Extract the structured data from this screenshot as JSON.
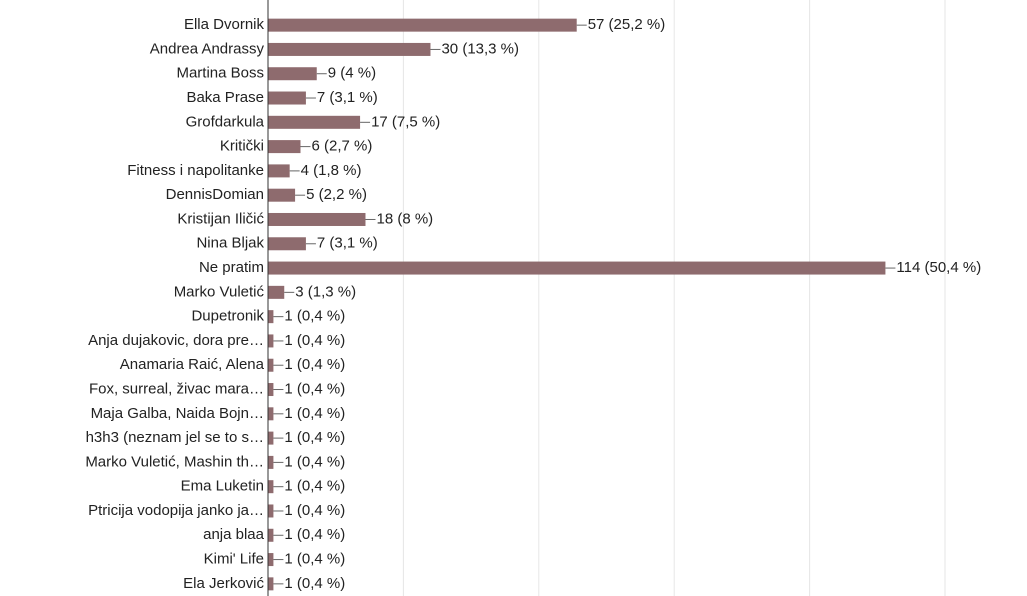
{
  "chart_data": {
    "type": "barh",
    "categories": [
      "Ella Dvornik",
      "Andrea Andrassy",
      "Martina Boss",
      "Baka Prase",
      "Grofdarkula",
      "Kritički",
      "Fitness i napolitanke",
      "DennisDomian",
      "Kristijan Iličić",
      "Nina Bljak",
      "Ne pratim",
      "Marko Vuletić",
      "Dupetronik",
      "Anja dujakovic, dora pre…",
      "Anamaria Raić, Alena",
      "Fox, surreal, živac mara…",
      "Maja Galba, Naida Bojn…",
      "h3h3 (neznam jel se to s…",
      "Marko Vuletić, Mashin th…",
      "Ema Luketin",
      "Ptricija vodopija janko ja…",
      "anja blaa",
      "Kimi' Life",
      "Ela Jerković"
    ],
    "values": [
      57,
      30,
      9,
      7,
      17,
      6,
      4,
      5,
      18,
      7,
      114,
      3,
      1,
      1,
      1,
      1,
      1,
      1,
      1,
      1,
      1,
      1,
      1,
      1
    ],
    "value_labels": [
      "57 (25,2 %)",
      "30 (13,3 %)",
      "9 (4 %)",
      "7 (3,1 %)",
      "17 (7,5 %)",
      "6 (2,7 %)",
      "4 (1,8 %)",
      "5 (2,2 %)",
      "18 (8 %)",
      "7 (3,1 %)",
      "114 (50,4 %)",
      "3 (1,3 %)",
      "1 (0,4 %)",
      "1 (0,4 %)",
      "1 (0,4 %)",
      "1 (0,4 %)",
      "1 (0,4 %)",
      "1 (0,4 %)",
      "1 (0,4 %)",
      "1 (0,4 %)",
      "1 (0,4 %)",
      "1 (0,4 %)",
      "1 (0,4 %)",
      "1 (0,4 %)"
    ],
    "color": "#8e6b6e",
    "xlim": [
      0,
      125
    ],
    "xticks": [
      0,
      25,
      50,
      75,
      100,
      125
    ],
    "grid": true
  }
}
